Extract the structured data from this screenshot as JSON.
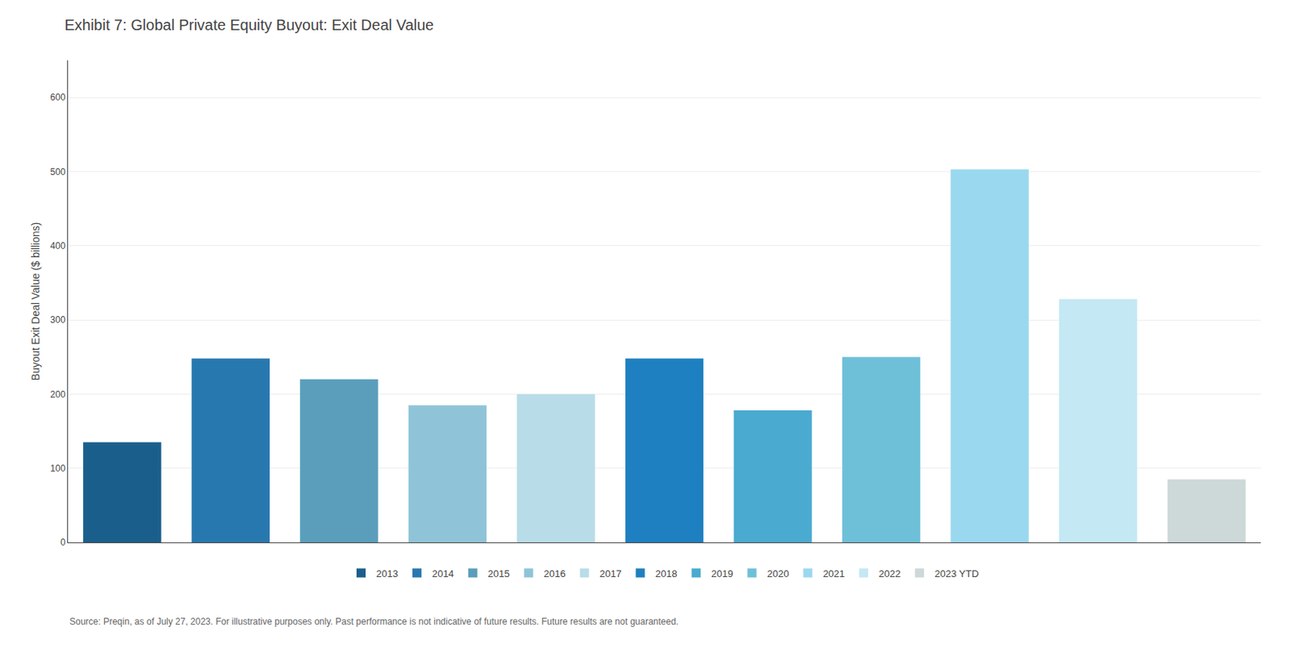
{
  "chart_data": {
    "type": "bar",
    "title": "Exhibit 7: Global Private Equity Buyout: Exit Deal Value",
    "y_label": "Buyout Exit Deal Value ($ billions)",
    "annotations": [
      "Source: Preqin, as of July 27, 2023. For illustrative purposes only. Past performance is not indicative of future results. Future results are not guaranteed."
    ],
    "categories": [
      "2013",
      "2014",
      "2015",
      "2016",
      "2017",
      "2018",
      "2019",
      "2020",
      "2021",
      "2022",
      "2023 YTD"
    ],
    "values": [
      135,
      248,
      220,
      185,
      200,
      248,
      178,
      250,
      503,
      328,
      85
    ],
    "colors": [
      "#1a5f8c",
      "#2878b0",
      "#5a9ebc",
      "#8fc4d8",
      "#b8dce8",
      "#1e80c0",
      "#4aaad0",
      "#6ec0d8",
      "#9ad8f0",
      "#c4e8f4",
      "#cdd8d8"
    ],
    "ylim": [
      0,
      650
    ],
    "yticks": [
      0,
      100,
      200,
      300,
      400,
      500,
      600
    ],
    "grid": true,
    "legend": "bottom",
    "tick_labels": "y"
  }
}
